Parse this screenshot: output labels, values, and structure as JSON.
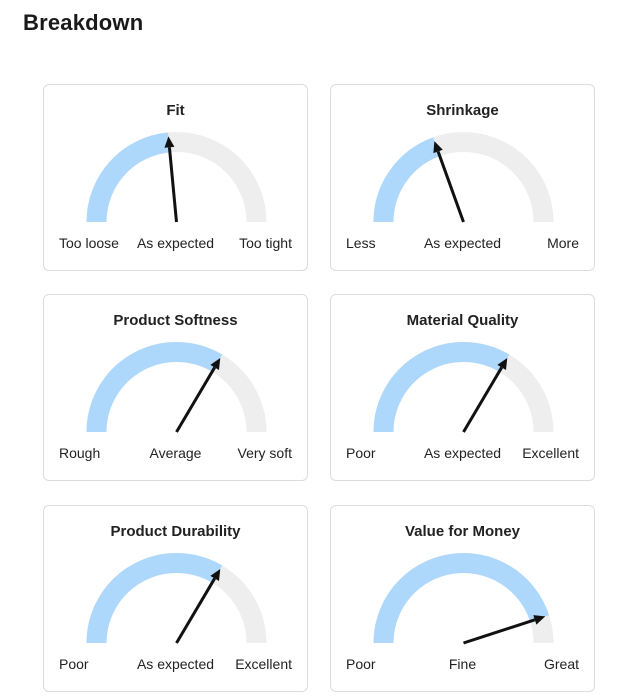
{
  "page": {
    "title": "Breakdown"
  },
  "colors": {
    "track": "#eeeeee",
    "fill": "#aed8fb",
    "needle": "#111111"
  },
  "cards": [
    {
      "title": "Fit",
      "labels": [
        "Too loose",
        "As expected",
        "Too tight"
      ],
      "level": 0.47
    },
    {
      "title": "Shrinkage",
      "labels": [
        "Less",
        "As expected",
        "More"
      ],
      "level": 0.39
    },
    {
      "title": "Product Softness",
      "labels": [
        "Rough",
        "Average",
        "Very soft"
      ],
      "level": 0.67
    },
    {
      "title": "Material Quality",
      "labels": [
        "Poor",
        "As expected",
        "Excellent"
      ],
      "level": 0.67
    },
    {
      "title": "Product Durability",
      "labels": [
        "Poor",
        "As expected",
        "Excellent"
      ],
      "level": 0.67
    },
    {
      "title": "Value for Money",
      "labels": [
        "Poor",
        "Fine",
        "Great"
      ],
      "level": 0.9
    }
  ]
}
